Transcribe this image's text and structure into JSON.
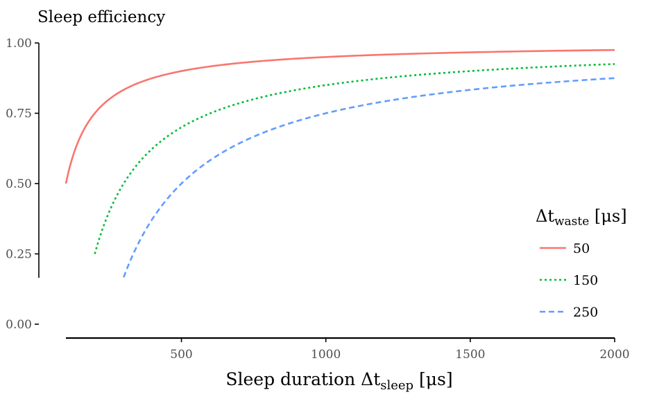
{
  "chart_data": {
    "type": "line",
    "ylabel": "Sleep efficiency",
    "xlabel": {
      "main": "Sleep duration Δt",
      "subscript": "sleep",
      "unit": " [μs]"
    },
    "x_ticks": [
      500,
      1000,
      1500,
      2000
    ],
    "y_ticks": [
      "0.00",
      "0.25",
      "0.50",
      "0.75",
      "1.00"
    ],
    "xlim": [
      100,
      2000
    ],
    "ylim": [
      0,
      1
    ],
    "x_axis_line": [
      100,
      2000
    ],
    "y_axis_line": [
      0.165,
      1.0
    ],
    "legend": {
      "title_main": "Δt",
      "title_sub": "waste",
      "title_unit": " [μs]",
      "position": "right"
    },
    "series": [
      {
        "name": "50",
        "waste": 50,
        "x_start": 100,
        "x_end": 2000,
        "color": "#F8766D",
        "dash": "solid"
      },
      {
        "name": "150",
        "waste": 150,
        "x_start": 200,
        "x_end": 2000,
        "color": "#00BA38",
        "dash": "dotted"
      },
      {
        "name": "250",
        "waste": 250,
        "x_start": 300,
        "x_end": 2000,
        "color": "#619CFF",
        "dash": "dashed"
      }
    ]
  }
}
